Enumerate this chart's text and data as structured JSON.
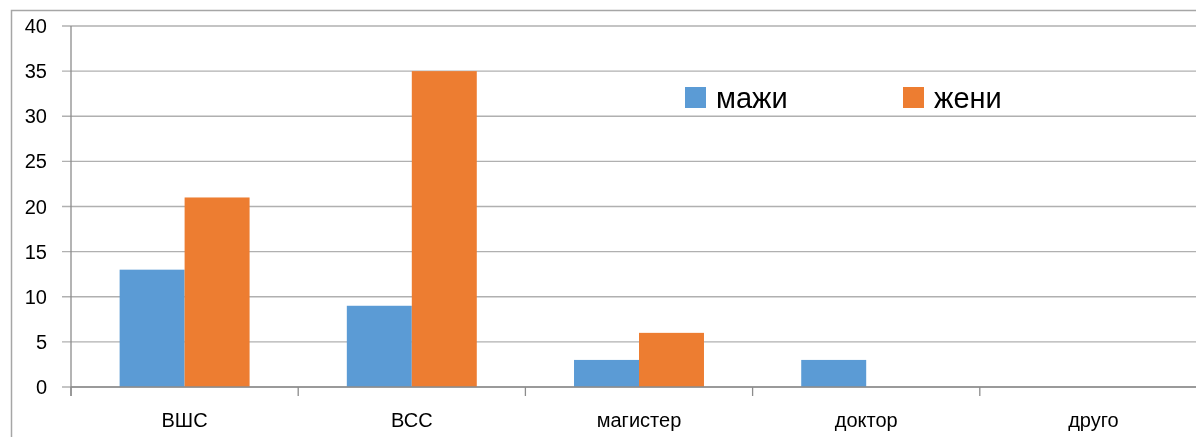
{
  "chart_data": {
    "type": "bar",
    "categories": [
      "ВШС",
      "ВСС",
      "магистер",
      "доктор",
      "друго"
    ],
    "series": [
      {
        "name": "мажи",
        "color": "#5b9bd5",
        "values": [
          13,
          9,
          3,
          3,
          0
        ]
      },
      {
        "name": "жени",
        "color": "#ed7d31",
        "values": [
          21,
          35,
          6,
          0,
          0
        ]
      }
    ],
    "ylim": [
      0,
      40
    ],
    "yticks": [
      0,
      5,
      10,
      15,
      20,
      25,
      30,
      35,
      40
    ],
    "grid": "y",
    "legend": "top right"
  }
}
